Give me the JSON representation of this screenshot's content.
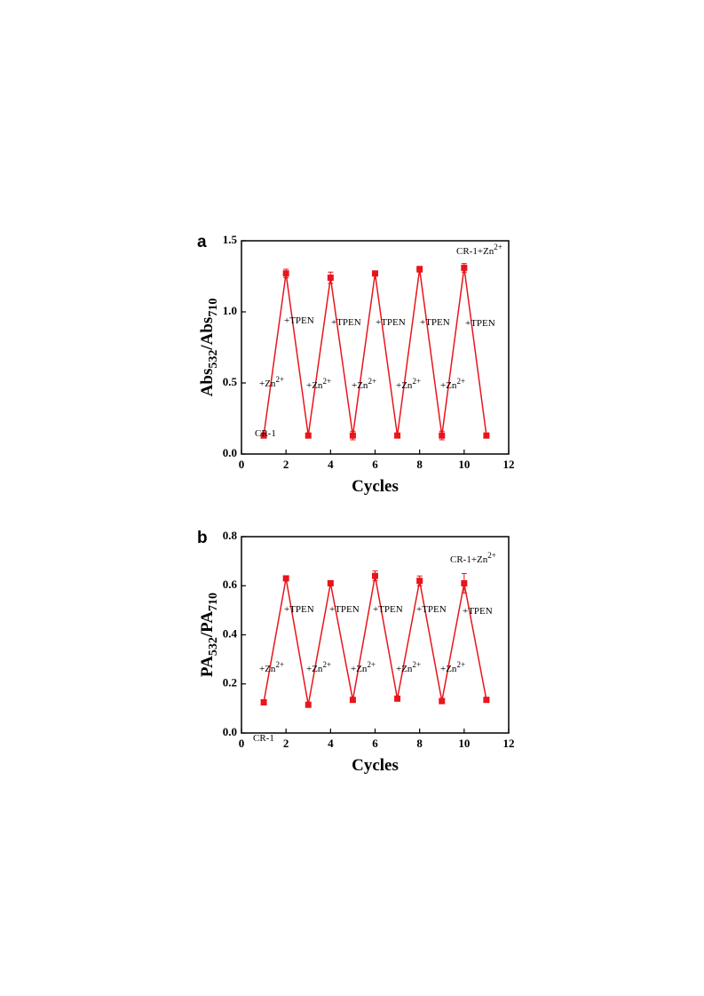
{
  "chart_data": [
    {
      "type": "line",
      "panel": "a",
      "xlabel": "Cycles",
      "ylabel": [
        {
          "text": "Abs"
        },
        {
          "text": "532",
          "sub": true
        },
        {
          "text": "/Abs"
        },
        {
          "text": "710",
          "sub": true
        }
      ],
      "x": [
        1,
        2,
        3,
        4,
        5,
        6,
        7,
        8,
        9,
        10,
        11
      ],
      "series": [
        {
          "color": "#e8151b",
          "values": [
            0.13,
            1.27,
            0.13,
            1.24,
            0.13,
            1.27,
            0.13,
            1.3,
            0.13,
            1.31,
            0.13
          ],
          "errors": [
            0.01,
            0.03,
            0.01,
            0.04,
            0.03,
            0.01,
            0.01,
            0.02,
            0.03,
            0.03,
            0.01
          ]
        }
      ],
      "xlim": [
        0,
        12
      ],
      "xticks": [
        0,
        2,
        4,
        6,
        8,
        10,
        12
      ],
      "ylim": [
        0,
        1.5
      ],
      "yticks": [
        {
          "value": 0,
          "label": "0.0"
        },
        0.5,
        {
          "value": 1,
          "label": "1.0"
        },
        1.5
      ],
      "annotations": [
        {
          "text": "CR-1"
        },
        {
          "text": "+Zn",
          "sup": "2+"
        },
        {
          "text": "+Zn",
          "sup": "2+"
        },
        {
          "text": "+Zn",
          "sup": "2+"
        },
        {
          "text": "+Zn",
          "sup": "2+"
        },
        {
          "text": "+Zn",
          "sup": "2+"
        },
        {
          "text": "+TPEN"
        },
        {
          "text": "+TPEN"
        },
        {
          "text": "+TPEN"
        },
        {
          "text": "+TPEN"
        },
        {
          "text": "+TPEN"
        },
        {
          "text": "CR-1+Zn",
          "sup": "2+"
        }
      ]
    },
    {
      "type": "line",
      "panel": "b",
      "xlabel": "Cycles",
      "ylabel": [
        {
          "text": "PA"
        },
        {
          "text": "532",
          "sub": true
        },
        {
          "text": "/PA"
        },
        {
          "text": "710",
          "sub": true
        }
      ],
      "x": [
        1,
        2,
        3,
        4,
        5,
        6,
        7,
        8,
        9,
        10,
        11
      ],
      "series": [
        {
          "color": "#e8151b",
          "values": [
            0.125,
            0.63,
            0.115,
            0.61,
            0.135,
            0.64,
            0.14,
            0.62,
            0.13,
            0.61,
            0.135
          ],
          "errors": [
            0.01,
            0.01,
            0.01,
            0.005,
            0.005,
            0.02,
            0.005,
            0.02,
            0.01,
            0.04,
            0.01
          ]
        }
      ],
      "xlim": [
        0,
        12
      ],
      "xticks": [
        0,
        2,
        4,
        6,
        8,
        10,
        12
      ],
      "ylim": [
        0,
        0.8
      ],
      "yticks": [
        {
          "value": 0,
          "label": "0.0"
        },
        0.2,
        0.4,
        0.6,
        0.8
      ],
      "annotations": [
        {
          "text": "CR-1"
        },
        {
          "text": "+Zn",
          "sup": "2+"
        },
        {
          "text": "+Zn",
          "sup": "2+"
        },
        {
          "text": "+Zn",
          "sup": "2+"
        },
        {
          "text": "+Zn",
          "sup": "2+"
        },
        {
          "text": "+Zn",
          "sup": "2+"
        },
        {
          "text": "+TPEN"
        },
        {
          "text": "+TPEN"
        },
        {
          "text": "+TPEN"
        },
        {
          "text": "+TPEN"
        },
        {
          "text": "+TPEN"
        },
        {
          "text": "CR-1+Zn",
          "sup": "2+"
        }
      ]
    }
  ]
}
